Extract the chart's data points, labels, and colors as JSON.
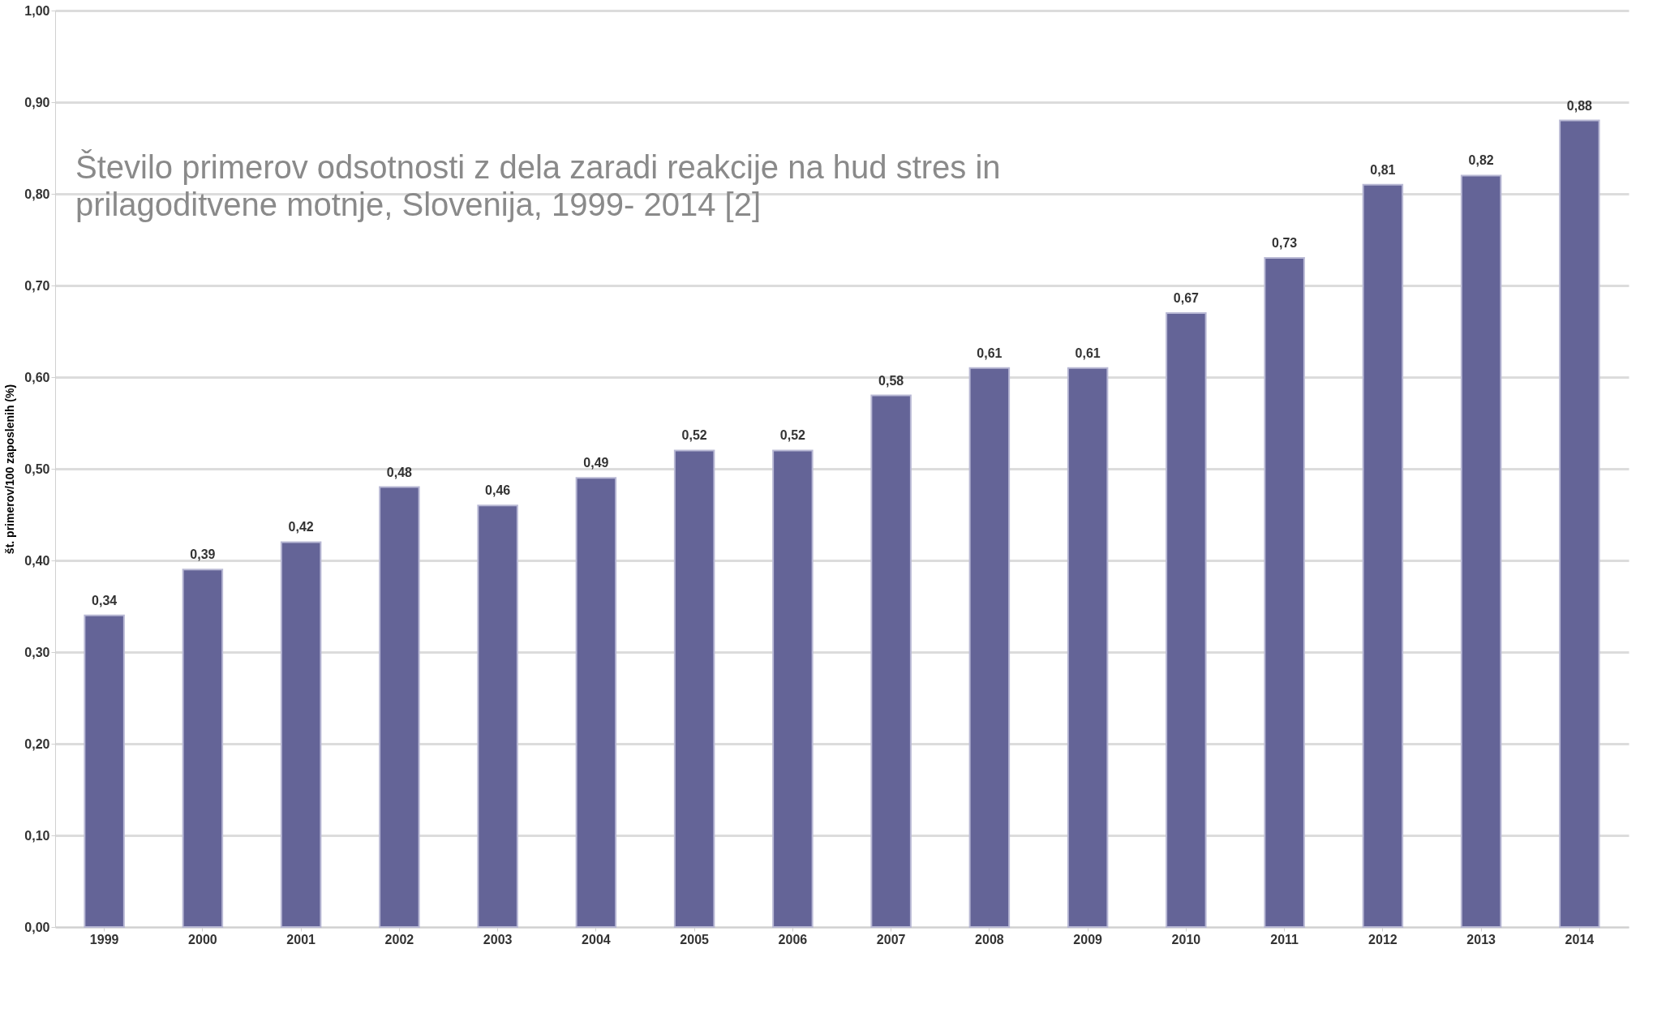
{
  "chart_data": {
    "type": "bar",
    "title": "Število primerov odsotnosti z dela zaradi reakcije na hud stres in prilagoditvene motnje, Slovenija, 1999- 2014 [2]",
    "ylabel": "št. primerov/100 zaposlenih (%)",
    "categories": [
      "1999",
      "2000",
      "2001",
      "2002",
      "2003",
      "2004",
      "2005",
      "2006",
      "2007",
      "2008",
      "2009",
      "2010",
      "2011",
      "2012",
      "2013",
      "2014"
    ],
    "values": [
      0.34,
      0.39,
      0.42,
      0.48,
      0.46,
      0.49,
      0.52,
      0.52,
      0.58,
      0.61,
      0.61,
      0.67,
      0.73,
      0.81,
      0.82,
      0.88
    ],
    "value_labels": [
      "0,34",
      "0,39",
      "0,42",
      "0,48",
      "0,46",
      "0,49",
      "0,52",
      "0,52",
      "0,58",
      "0,61",
      "0,61",
      "0,67",
      "0,73",
      "0,81",
      "0,82",
      "0,88"
    ],
    "color": "#646497",
    "ylim": [
      0,
      1
    ],
    "yticks": [
      {
        "value": 0,
        "label": "0,00"
      },
      {
        "value": 0.1,
        "label": "0,10"
      },
      {
        "value": 0.2,
        "label": "0,20"
      },
      {
        "value": 0.3,
        "label": "0,30"
      },
      {
        "value": 0.4,
        "label": "0,40"
      },
      {
        "value": 0.5,
        "label": "0,50"
      },
      {
        "value": 0.6,
        "label": "0,60"
      },
      {
        "value": 0.7,
        "label": "0,70"
      },
      {
        "value": 0.8,
        "label": "0,80"
      },
      {
        "value": 0.9,
        "label": "0,90"
      },
      {
        "value": 1.0,
        "label": "1,00"
      }
    ],
    "grid": "y"
  }
}
